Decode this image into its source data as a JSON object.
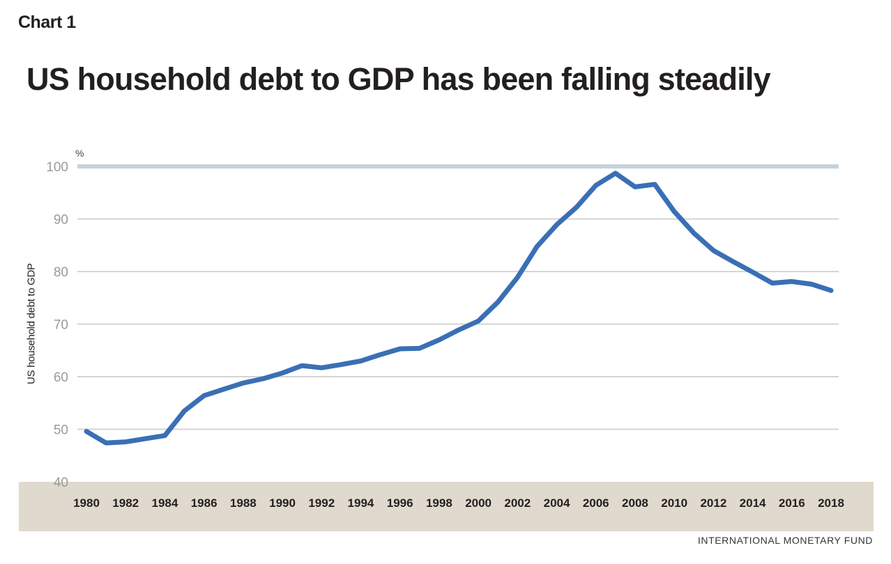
{
  "header": {
    "chart_label": "Chart 1",
    "title": "US household debt to GDP has been falling steadily"
  },
  "footer": {
    "source": "INTERNATIONAL MONETARY FUND"
  },
  "colors": {
    "line": "#3a6fb5",
    "grid": "#d4d4d4",
    "highlight_gridline": "#c5d2db",
    "x_band": "#e0d9cd"
  },
  "chart_data": {
    "type": "line",
    "title": "US household debt to GDP has been falling steadily",
    "xlabel": "",
    "ylabel": "US household debt to GDP",
    "y_unit": "%",
    "ylim": [
      40,
      100
    ],
    "yticks": [
      40,
      50,
      60,
      70,
      80,
      90,
      100
    ],
    "xticks": [
      1980,
      1982,
      1984,
      1986,
      1988,
      1990,
      1992,
      1994,
      1996,
      1998,
      2000,
      2002,
      2004,
      2006,
      2008,
      2010,
      2012,
      2014,
      2016,
      2018
    ],
    "grid": true,
    "legend": "none",
    "series": [
      {
        "x": [
          1980,
          1981,
          1982,
          1983,
          1984,
          1985,
          1986,
          1987,
          1988,
          1989,
          1990,
          1991,
          1992,
          1993,
          1994,
          1995,
          1996,
          1997,
          1998,
          1999,
          2000,
          2001,
          2002,
          2003,
          2004,
          2005,
          2006,
          2007,
          2008,
          2009,
          2010,
          2011,
          2012,
          2013,
          2014,
          2015,
          2016,
          2017,
          2018
        ],
        "values": [
          49.6,
          47.4,
          47.6,
          48.2,
          48.8,
          53.5,
          56.4,
          57.6,
          58.8,
          59.6,
          60.7,
          62.1,
          61.7,
          62.3,
          63.0,
          64.2,
          65.3,
          65.4,
          67.0,
          68.9,
          70.6,
          74.2,
          78.9,
          84.8,
          88.9,
          92.2,
          96.4,
          98.7,
          96.1,
          96.6,
          91.4,
          87.3,
          84.0,
          81.9,
          79.9,
          77.8,
          78.1,
          77.6,
          76.4
        ]
      }
    ]
  }
}
